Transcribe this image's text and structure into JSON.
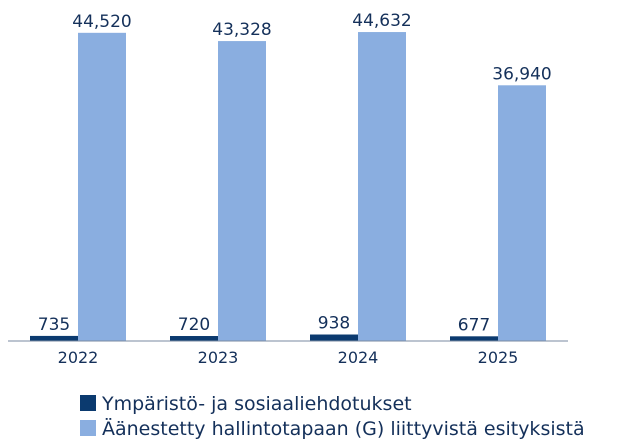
{
  "chart_data": {
    "type": "bar",
    "categories": [
      "2022",
      "2023",
      "2024",
      "2025"
    ],
    "series": [
      {
        "name": "Ympäristö- ja sosiaaliehdotukset",
        "color": "#0b3a6f",
        "values": [
          735,
          720,
          938,
          677
        ],
        "value_labels": [
          "735",
          "720",
          "938",
          "677"
        ]
      },
      {
        "name": "Äänestetty hallintotapaan (G) liittyvistä esityksistä",
        "color": "#8aaee0",
        "values": [
          44520,
          43328,
          44632,
          36940
        ],
        "value_labels": [
          "44,520",
          "43,328",
          "44,632",
          "36,940"
        ]
      }
    ],
    "ylim": [
      0,
      45000
    ]
  }
}
